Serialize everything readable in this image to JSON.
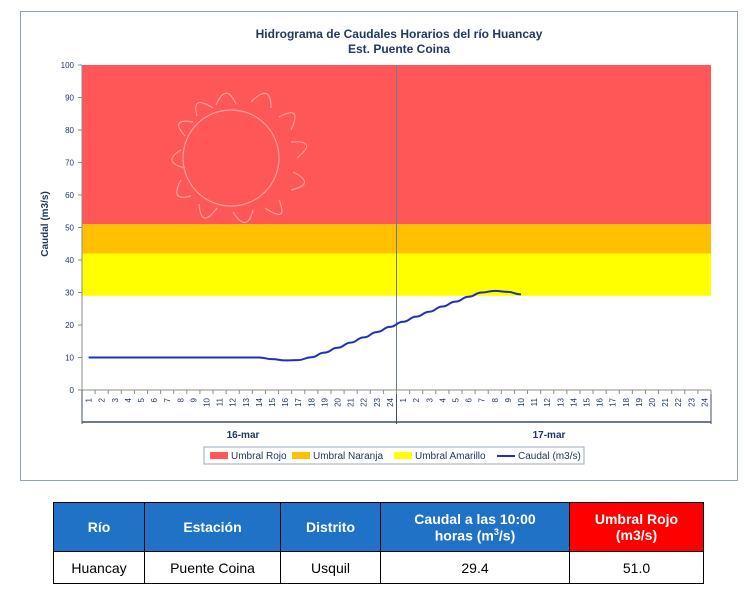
{
  "chart_data": {
    "type": "line",
    "title": "Hidrograma de Caudales Horarios del río Huancay",
    "subtitle": "Est. Puente Coina",
    "ylabel": "Caudal  (m3/s)",
    "ylim": [
      0,
      100
    ],
    "yticks": [
      "0",
      "10",
      "20",
      "30",
      "40",
      "50",
      "60",
      "70",
      "80",
      "90",
      "100"
    ],
    "xticks": [
      "1",
      "2",
      "3",
      "4",
      "5",
      "6",
      "7",
      "8",
      "9",
      "10",
      "11",
      "12",
      "13",
      "14",
      "15",
      "16",
      "17",
      "18",
      "19",
      "20",
      "21",
      "22",
      "23",
      "24",
      "1",
      "2",
      "3",
      "4",
      "5",
      "6",
      "7",
      "8",
      "9",
      "10",
      "11",
      "12",
      "13",
      "14",
      "15",
      "16",
      "17",
      "18",
      "19",
      "20",
      "21",
      "22",
      "23",
      "24"
    ],
    "days": [
      "16-mar",
      "17-mar"
    ],
    "bands": [
      {
        "name": "Umbral Rojo",
        "from": 51,
        "to": 100,
        "color": "#ff5757"
      },
      {
        "name": "Umbral Naranja",
        "from": 42,
        "to": 51,
        "color": "#ffc000"
      },
      {
        "name": "Umbral Amarillo",
        "from": 29,
        "to": 42,
        "color": "#ffff00"
      }
    ],
    "series": [
      {
        "name": "Caudal (m3/s)",
        "color": "#1f2fbf",
        "x": [
          1,
          2,
          3,
          4,
          5,
          6,
          7,
          8,
          9,
          10,
          11,
          12,
          13,
          14,
          15,
          16,
          17,
          18,
          19,
          20,
          21,
          22,
          23,
          24,
          25,
          26,
          27,
          28,
          29,
          30,
          31,
          32,
          33,
          34
        ],
        "values": [
          10,
          10,
          10,
          10,
          10,
          10,
          10,
          10,
          10,
          10,
          10,
          10,
          10,
          10,
          9.5,
          9.1,
          9.2,
          10.1,
          11.5,
          13.0,
          14.6,
          16.2,
          17.8,
          19.4,
          21.0,
          22.6,
          24.1,
          25.7,
          27.2,
          28.7,
          30.0,
          30.5,
          30.2,
          29.4
        ]
      }
    ],
    "legend": [
      "Umbral Rojo",
      "Umbral Naranja",
      "Umbral Amarillo",
      "Caudal (m3/s)"
    ],
    "legend_placement": "bottom",
    "grid": false
  },
  "table": {
    "headers": {
      "rio": "Río",
      "estacion": "Estación",
      "distrito": "Distrito",
      "caudal_line1": "Caudal a las 10:00",
      "caudal_line2_pre": "horas (m",
      "caudal_sup": "3",
      "caudal_line2_post": "/s)",
      "umbral_line1": "Umbral Rojo",
      "umbral_line2": "(m3/s)"
    },
    "row": {
      "rio": "Huancay",
      "estacion": "Puente Coina",
      "distrito": "Usquil",
      "caudal": "29.4",
      "umbral": "51.0"
    }
  }
}
